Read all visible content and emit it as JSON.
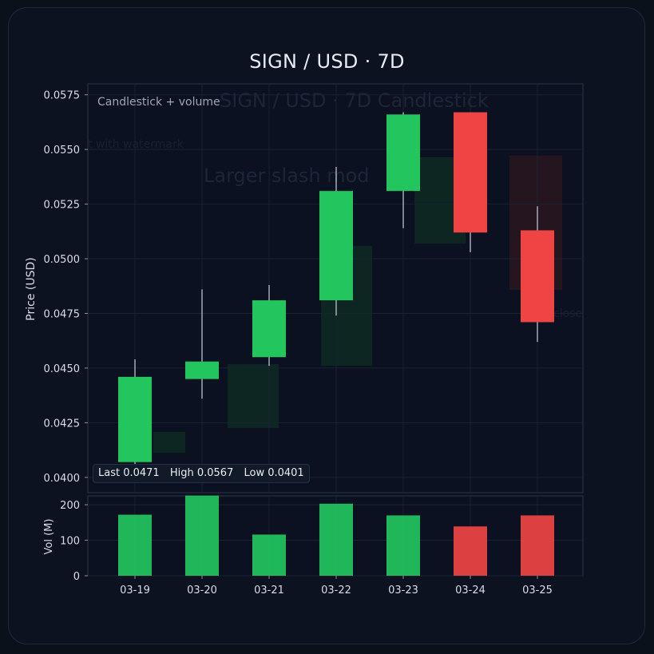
{
  "title": "SIGN / USD · 7D",
  "subtitle": "Candlestick + volume",
  "watermark": {
    "title": "SIGN / USD · 7D Candlestick",
    "line2": "t with watermark",
    "line3": "Larger slash mod",
    "label": "close"
  },
  "stats": {
    "last": "Last 0.0471",
    "high": "High 0.0567",
    "low": "Low 0.0401"
  },
  "colors": {
    "up": "#22c55e",
    "down": "#ef4444",
    "background": "#0c1220"
  },
  "chart_data": {
    "type": "candlestick",
    "ylabel": "Price (USD)",
    "ylim": [
      0.0393,
      0.058
    ],
    "yticks": [
      "0.0575",
      "0.0550",
      "0.0525",
      "0.0500",
      "0.0475",
      "0.0450",
      "0.0425",
      "0.0400"
    ],
    "categories": [
      "03-19",
      "03-20",
      "03-21",
      "03-22",
      "03-23",
      "03-24",
      "03-25"
    ],
    "series": [
      {
        "open": [
          0.0407,
          0.0445,
          0.0455,
          0.0481,
          0.0531,
          0.0567,
          0.0513
        ],
        "close": [
          0.0446,
          0.0453,
          0.0481,
          0.0531,
          0.0566,
          0.0512,
          0.0471
        ],
        "high": [
          0.0454,
          0.0486,
          0.0488,
          0.0542,
          0.0567,
          0.0567,
          0.0524
        ],
        "low": [
          0.0401,
          0.0436,
          0.0451,
          0.0474,
          0.0514,
          0.0503,
          0.0462
        ]
      }
    ],
    "volume": {
      "ylabel": "Vol (M)",
      "yticks": [
        "0",
        "100",
        "200"
      ],
      "ylim": [
        0,
        225
      ],
      "values": [
        172,
        226,
        116,
        203,
        170,
        139,
        170
      ]
    }
  }
}
